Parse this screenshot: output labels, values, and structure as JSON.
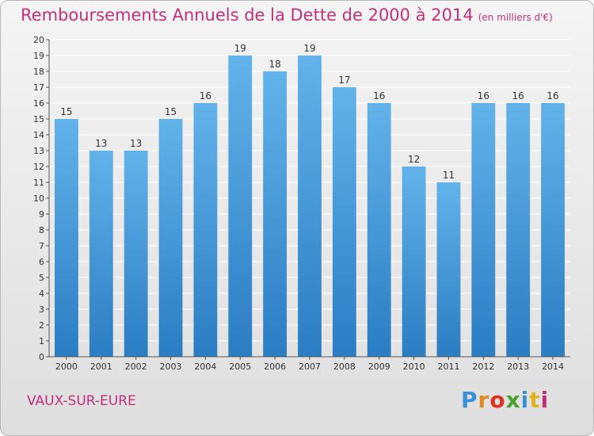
{
  "header": {
    "title": "Remboursements Annuels de la Dette de 2000 à 2014",
    "unit": "(en milliers d'€)"
  },
  "footer": {
    "town": "VAUX-SUR-EURE",
    "logo": [
      "P",
      "r",
      "o",
      "x",
      "i",
      "t",
      "i"
    ]
  },
  "chart_data": {
    "type": "bar",
    "title": "Remboursements Annuels de la Dette de 2000 à 2014",
    "xlabel": "",
    "ylabel": "",
    "ylim": [
      0,
      20
    ],
    "yticks": [
      0,
      1,
      2,
      3,
      4,
      5,
      6,
      7,
      8,
      9,
      10,
      11,
      12,
      13,
      14,
      15,
      16,
      17,
      18,
      19,
      20
    ],
    "categories": [
      "2000",
      "2001",
      "2002",
      "2003",
      "2004",
      "2005",
      "2006",
      "2007",
      "2008",
      "2009",
      "2010",
      "2011",
      "2012",
      "2013",
      "2014"
    ],
    "values": [
      15,
      13,
      13,
      15,
      16,
      19,
      18,
      19,
      17,
      16,
      12,
      11,
      16,
      16,
      16
    ],
    "grid": true,
    "colors": {
      "bar_top": "#62b2ea",
      "bar_bottom": "#2b7dc3",
      "grid": "#ffffff",
      "axis": "#555555"
    }
  }
}
